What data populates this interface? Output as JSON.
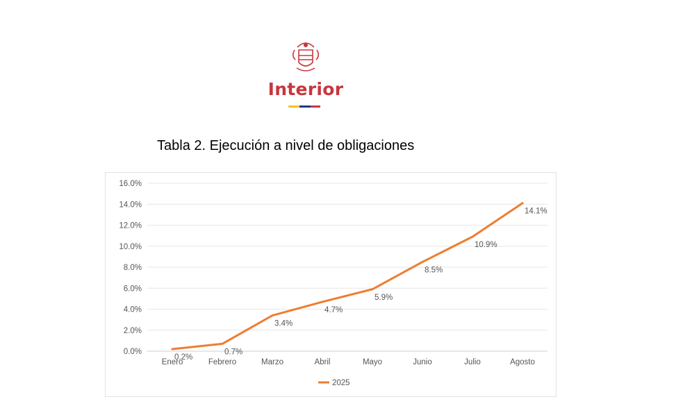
{
  "header": {
    "logo_text": "Interior",
    "logo_colors": {
      "text": "#c8363e",
      "flag_yellow": "#f5c02a",
      "flag_blue": "#1d3a8a",
      "flag_red": "#c8363e"
    }
  },
  "table_title": "Tabla 2. Ejecución a nivel de obligaciones",
  "chart_data": {
    "type": "line",
    "title": "",
    "xlabel": "",
    "ylabel": "",
    "categories": [
      "Enero",
      "Febrero",
      "Marzo",
      "Abril",
      "Mayo",
      "Junio",
      "Julio",
      "Agosto"
    ],
    "series": [
      {
        "name": "2025",
        "color": "#ed7d31",
        "values": [
          0.2,
          0.7,
          3.4,
          4.7,
          5.9,
          8.5,
          10.9,
          14.1
        ],
        "data_labels": [
          "0.2%",
          "0.7%",
          "3.4%",
          "4.7%",
          "5.9%",
          "8.5%",
          "10.9%",
          "14.1%"
        ]
      }
    ],
    "ylim": [
      0,
      16
    ],
    "y_ticks": [
      "0.0%",
      "2.0%",
      "4.0%",
      "6.0%",
      "8.0%",
      "10.0%",
      "12.0%",
      "14.0%",
      "16.0%"
    ],
    "grid": true,
    "legend": "bottom"
  }
}
